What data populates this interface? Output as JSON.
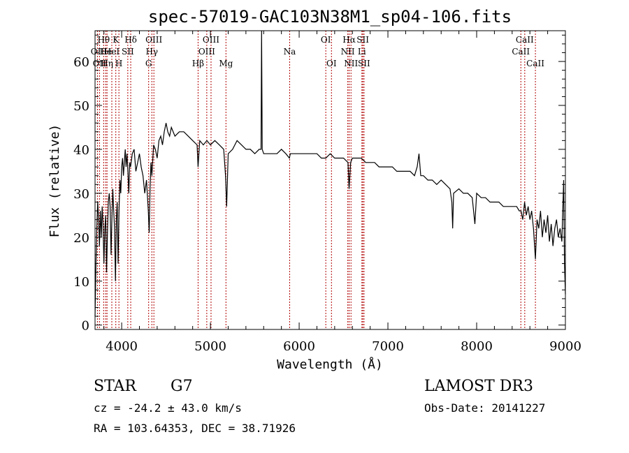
{
  "chart_data": {
    "type": "line",
    "title": "spec-57019-GAC103N38M1_sp04-106.fits",
    "xlabel": "Wavelength (Å)",
    "ylabel": "Flux (relative)",
    "xlim": [
      3700,
      9000
    ],
    "ylim": [
      -1,
      67
    ],
    "x_ticks": [
      4000,
      5000,
      6000,
      7000,
      8000,
      9000
    ],
    "y_ticks": [
      0,
      10,
      20,
      30,
      40,
      50,
      60
    ],
    "grid": false,
    "series": [
      {
        "name": "spectrum",
        "points": [
          [
            3700,
            2
          ],
          [
            3710,
            14
          ],
          [
            3720,
            22
          ],
          [
            3730,
            28
          ],
          [
            3740,
            24
          ],
          [
            3750,
            18
          ],
          [
            3760,
            26
          ],
          [
            3770,
            20
          ],
          [
            3780,
            27
          ],
          [
            3790,
            23
          ],
          [
            3800,
            14
          ],
          [
            3810,
            22
          ],
          [
            3820,
            25
          ],
          [
            3830,
            12
          ],
          [
            3840,
            21
          ],
          [
            3850,
            28
          ],
          [
            3860,
            30
          ],
          [
            3870,
            27
          ],
          [
            3880,
            16
          ],
          [
            3890,
            24
          ],
          [
            3900,
            31
          ],
          [
            3910,
            26
          ],
          [
            3920,
            22
          ],
          [
            3930,
            10
          ],
          [
            3940,
            24
          ],
          [
            3950,
            28
          ],
          [
            3960,
            14
          ],
          [
            3970,
            26
          ],
          [
            3980,
            33
          ],
          [
            3990,
            30
          ],
          [
            4000,
            36
          ],
          [
            4010,
            38
          ],
          [
            4020,
            34
          ],
          [
            4030,
            37
          ],
          [
            4040,
            40
          ],
          [
            4050,
            36
          ],
          [
            4060,
            39
          ],
          [
            4070,
            35
          ],
          [
            4080,
            30
          ],
          [
            4090,
            37
          ],
          [
            4100,
            36
          ],
          [
            4120,
            39
          ],
          [
            4140,
            40
          ],
          [
            4160,
            35
          ],
          [
            4180,
            37
          ],
          [
            4200,
            39
          ],
          [
            4220,
            36
          ],
          [
            4240,
            34
          ],
          [
            4260,
            30
          ],
          [
            4280,
            33
          ],
          [
            4300,
            26
          ],
          [
            4310,
            21
          ],
          [
            4320,
            31
          ],
          [
            4330,
            37
          ],
          [
            4340,
            34
          ],
          [
            4360,
            41
          ],
          [
            4380,
            40
          ],
          [
            4400,
            38
          ],
          [
            4420,
            42
          ],
          [
            4440,
            43
          ],
          [
            4460,
            41
          ],
          [
            4480,
            44
          ],
          [
            4500,
            46
          ],
          [
            4520,
            44
          ],
          [
            4540,
            43
          ],
          [
            4560,
            45
          ],
          [
            4600,
            43
          ],
          [
            4650,
            44
          ],
          [
            4700,
            44
          ],
          [
            4750,
            43
          ],
          [
            4800,
            42
          ],
          [
            4850,
            41
          ],
          [
            4861,
            36
          ],
          [
            4880,
            42
          ],
          [
            4920,
            41
          ],
          [
            4960,
            42
          ],
          [
            5000,
            41
          ],
          [
            5050,
            42
          ],
          [
            5100,
            41
          ],
          [
            5150,
            40
          ],
          [
            5170,
            34
          ],
          [
            5183,
            27
          ],
          [
            5200,
            39
          ],
          [
            5250,
            40
          ],
          [
            5300,
            42
          ],
          [
            5350,
            41
          ],
          [
            5400,
            40
          ],
          [
            5450,
            40
          ],
          [
            5500,
            39
          ],
          [
            5550,
            40
          ],
          [
            5570,
            40
          ],
          [
            5577,
            67
          ],
          [
            5584,
            40
          ],
          [
            5600,
            39
          ],
          [
            5650,
            39
          ],
          [
            5700,
            39
          ],
          [
            5750,
            39
          ],
          [
            5800,
            40
          ],
          [
            5850,
            39
          ],
          [
            5890,
            38
          ],
          [
            5900,
            39
          ],
          [
            5950,
            39
          ],
          [
            6000,
            39
          ],
          [
            6050,
            39
          ],
          [
            6100,
            39
          ],
          [
            6150,
            39
          ],
          [
            6200,
            39
          ],
          [
            6250,
            38
          ],
          [
            6300,
            38
          ],
          [
            6350,
            39
          ],
          [
            6400,
            38
          ],
          [
            6450,
            38
          ],
          [
            6500,
            38
          ],
          [
            6550,
            37
          ],
          [
            6563,
            31
          ],
          [
            6580,
            37
          ],
          [
            6600,
            38
          ],
          [
            6650,
            38
          ],
          [
            6700,
            38
          ],
          [
            6750,
            37
          ],
          [
            6800,
            37
          ],
          [
            6850,
            37
          ],
          [
            6900,
            36
          ],
          [
            6950,
            36
          ],
          [
            7000,
            36
          ],
          [
            7050,
            36
          ],
          [
            7100,
            35
          ],
          [
            7150,
            35
          ],
          [
            7200,
            35
          ],
          [
            7250,
            35
          ],
          [
            7300,
            34
          ],
          [
            7330,
            36
          ],
          [
            7350,
            39
          ],
          [
            7370,
            34
          ],
          [
            7400,
            34
          ],
          [
            7450,
            33
          ],
          [
            7500,
            33
          ],
          [
            7550,
            32
          ],
          [
            7600,
            33
          ],
          [
            7650,
            32
          ],
          [
            7700,
            31
          ],
          [
            7720,
            28
          ],
          [
            7730,
            22
          ],
          [
            7740,
            30
          ],
          [
            7800,
            31
          ],
          [
            7850,
            30
          ],
          [
            7900,
            30
          ],
          [
            7950,
            29
          ],
          [
            7980,
            23
          ],
          [
            8000,
            30
          ],
          [
            8050,
            29
          ],
          [
            8100,
            29
          ],
          [
            8150,
            28
          ],
          [
            8200,
            28
          ],
          [
            8250,
            28
          ],
          [
            8300,
            27
          ],
          [
            8350,
            27
          ],
          [
            8400,
            27
          ],
          [
            8450,
            27
          ],
          [
            8480,
            26
          ],
          [
            8500,
            26
          ],
          [
            8520,
            24
          ],
          [
            8540,
            28
          ],
          [
            8560,
            25
          ],
          [
            8580,
            27
          ],
          [
            8600,
            24
          ],
          [
            8620,
            26
          ],
          [
            8640,
            22
          ],
          [
            8662,
            15
          ],
          [
            8680,
            24
          ],
          [
            8700,
            22
          ],
          [
            8720,
            26
          ],
          [
            8740,
            20
          ],
          [
            8760,
            24
          ],
          [
            8780,
            21
          ],
          [
            8800,
            25
          ],
          [
            8820,
            19
          ],
          [
            8840,
            23
          ],
          [
            8860,
            18
          ],
          [
            8880,
            22
          ],
          [
            8900,
            24
          ],
          [
            8920,
            20
          ],
          [
            8940,
            22
          ],
          [
            8960,
            19
          ],
          [
            8980,
            33
          ],
          [
            8990,
            14
          ],
          [
            9000,
            7
          ]
        ]
      }
    ],
    "line_markers": [
      {
        "x": 3727,
        "label": "OII",
        "row": 2
      },
      {
        "x": 3750,
        "label": "OII",
        "row": 3
      },
      {
        "x": 3797,
        "label": "Hθ",
        "row": 1
      },
      {
        "x": 3820,
        "label": "He",
        "row": 2
      },
      {
        "x": 3835,
        "label": "Hη",
        "row": 3
      },
      {
        "x": 3889,
        "label": "HeI",
        "row": 2
      },
      {
        "x": 3934,
        "label": "K",
        "row": 1
      },
      {
        "x": 3969,
        "label": "H",
        "row": 3
      },
      {
        "x": 4069,
        "label": "SII",
        "row": 2
      },
      {
        "x": 4102,
        "label": "Hδ",
        "row": 1
      },
      {
        "x": 4304,
        "label": "G",
        "row": 3
      },
      {
        "x": 4340,
        "label": "Hγ",
        "row": 2
      },
      {
        "x": 4363,
        "label": "OIII",
        "row": 1
      },
      {
        "x": 4861,
        "label": "Hβ",
        "row": 3
      },
      {
        "x": 4959,
        "label": "OIII",
        "row": 2
      },
      {
        "x": 5007,
        "label": "OIII",
        "row": 1
      },
      {
        "x": 5175,
        "label": "Mg",
        "row": 3
      },
      {
        "x": 5893,
        "label": "Na",
        "row": 2
      },
      {
        "x": 6300,
        "label": "OI",
        "row": 1
      },
      {
        "x": 6364,
        "label": "OI",
        "row": 3
      },
      {
        "x": 6548,
        "label": "NII",
        "row": 2
      },
      {
        "x": 6563,
        "label": "Hα",
        "row": 1
      },
      {
        "x": 6584,
        "label": "NII",
        "row": 3
      },
      {
        "x": 6707,
        "label": "Li",
        "row": 2
      },
      {
        "x": 6717,
        "label": "SII",
        "row": 1
      },
      {
        "x": 6731,
        "label": "SII",
        "row": 3
      },
      {
        "x": 8498,
        "label": "CaII",
        "row": 2
      },
      {
        "x": 8542,
        "label": "CaII",
        "row": 1
      },
      {
        "x": 8662,
        "label": "CaII",
        "row": 3
      }
    ],
    "marker_color": "#b00000"
  },
  "info": {
    "class_label": "STAR",
    "subclass_label": "G7",
    "survey": "LAMOST DR3",
    "redshift": "cz = -24.2 ± 43.0 km/s",
    "obs_date": "Obs-Date: 20141227",
    "coords": "RA = 103.64353, DEC =  38.71926"
  }
}
